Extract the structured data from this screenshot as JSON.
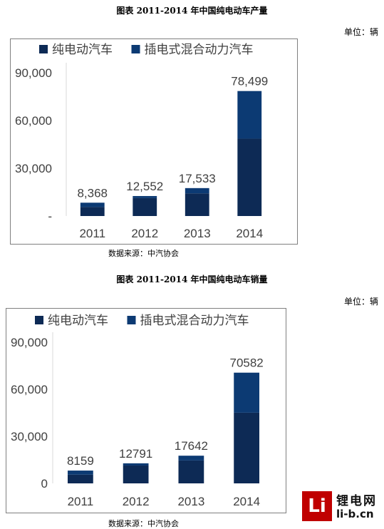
{
  "colors": {
    "pure_ev": "#0d2a55",
    "phev": "#0c3a73",
    "frame": "#7f7f7f",
    "logo_red": "#c00000"
  },
  "production": {
    "title": "图表    2011-2014 年中国纯电动车产量",
    "unit": "单位：辆",
    "source": "数据来源：中汽协会"
  },
  "sales": {
    "title": "图表    2011-2014 年中国纯电动车销量",
    "unit": "单位：辆",
    "source": "数据来源：中汽协会"
  },
  "logo": {
    "mark": "Li",
    "cn": "锂电网",
    "en": "li-b.cn"
  },
  "chart_data": [
    {
      "type": "bar",
      "stacked": true,
      "categories": [
        "2011",
        "2012",
        "2013",
        "2014"
      ],
      "series": [
        {
          "name": "纯电动汽车",
          "values": [
            5655,
            11241,
            14243,
            48605
          ]
        },
        {
          "name": "插电式混合动力汽车",
          "values": [
            2713,
            1311,
            3290,
            29894
          ]
        }
      ],
      "totals_labels": [
        "8,368",
        "12,552",
        "17,533",
        "78,499"
      ],
      "ytick_labels": [
        "-",
        "30,000",
        "60,000",
        "90,000"
      ],
      "ylim": [
        0,
        90000
      ],
      "legend": "top",
      "grid": false
    },
    {
      "type": "bar",
      "stacked": true,
      "categories": [
        "2011",
        "2012",
        "2013",
        "2014"
      ],
      "series": [
        {
          "name": "纯电动汽车",
          "values": [
            5579,
            11375,
            14604,
            45048
          ]
        },
        {
          "name": "插电式混合动力汽车",
          "values": [
            2580,
            1416,
            3038,
            25534
          ]
        }
      ],
      "totals_labels": [
        "8159",
        "12791",
        "17642",
        "70582"
      ],
      "ytick_labels": [
        "0",
        "30,000",
        "60,000",
        "90,000"
      ],
      "ylim": [
        0,
        90000
      ],
      "legend": "top",
      "grid": false
    }
  ]
}
